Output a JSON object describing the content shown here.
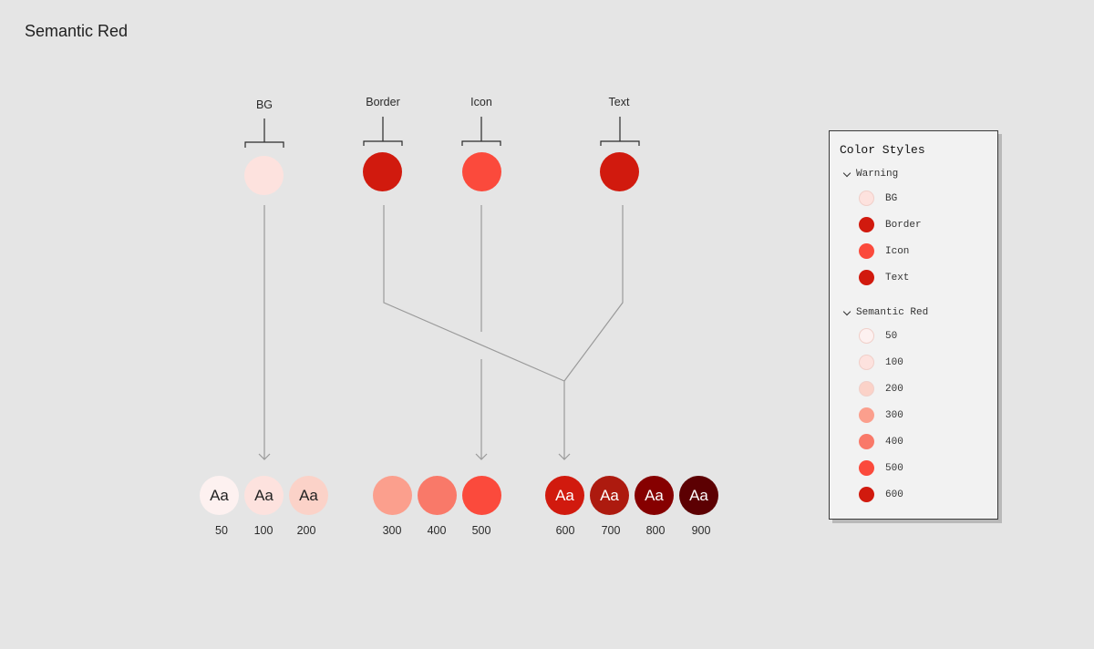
{
  "page_title": "Semantic Red",
  "semantic_labels": [
    "BG",
    "Border",
    "Icon",
    "Text"
  ],
  "top_dots": [
    {
      "name": "BG",
      "color": "#fde2de"
    },
    {
      "name": "Border",
      "color": "#d11a0e"
    },
    {
      "name": "Icon",
      "color": "#fb4a3c"
    },
    {
      "name": "Text",
      "color": "#d11a0e"
    }
  ],
  "swatch_text": "Aa",
  "shades": [
    {
      "label": "50",
      "color": "#fdf1f0",
      "text_color": "#222222",
      "show_text": true
    },
    {
      "label": "100",
      "color": "#fde2de",
      "text_color": "#222222",
      "show_text": true
    },
    {
      "label": "200",
      "color": "#fbd2c8",
      "text_color": "#222222",
      "show_text": true
    },
    {
      "label": "300",
      "color": "#fb9f8d",
      "text_color": "#222222",
      "show_text": false
    },
    {
      "label": "400",
      "color": "#f97969",
      "text_color": "#222222",
      "show_text": false
    },
    {
      "label": "500",
      "color": "#fb4a3c",
      "text_color": "#222222",
      "show_text": false
    },
    {
      "label": "600",
      "color": "#d11a0e",
      "text_color": "#ffffff",
      "show_text": true
    },
    {
      "label": "700",
      "color": "#ad1a0f",
      "text_color": "#ffffff",
      "show_text": true
    },
    {
      "label": "800",
      "color": "#860000",
      "text_color": "#ffffff",
      "show_text": true
    },
    {
      "label": "900",
      "color": "#5c0002",
      "text_color": "#ffffff",
      "show_text": true
    }
  ],
  "panel": {
    "title": "Color Styles",
    "groups": [
      {
        "name": "Warning",
        "items": [
          {
            "label": "BG",
            "color": "#fde2de"
          },
          {
            "label": "Border",
            "color": "#d11a0e"
          },
          {
            "label": "Icon",
            "color": "#fb4a3c"
          },
          {
            "label": "Text",
            "color": "#d11a0e"
          }
        ]
      },
      {
        "name": "Semantic Red",
        "items": [
          {
            "label": "50",
            "color": "#fdf1f0"
          },
          {
            "label": "100",
            "color": "#fde2de"
          },
          {
            "label": "200",
            "color": "#fbd2c8"
          },
          {
            "label": "300",
            "color": "#fb9f8d"
          },
          {
            "label": "400",
            "color": "#f97969"
          },
          {
            "label": "500",
            "color": "#fb4a3c"
          },
          {
            "label": "600",
            "color": "#d11a0e"
          }
        ]
      }
    ]
  }
}
